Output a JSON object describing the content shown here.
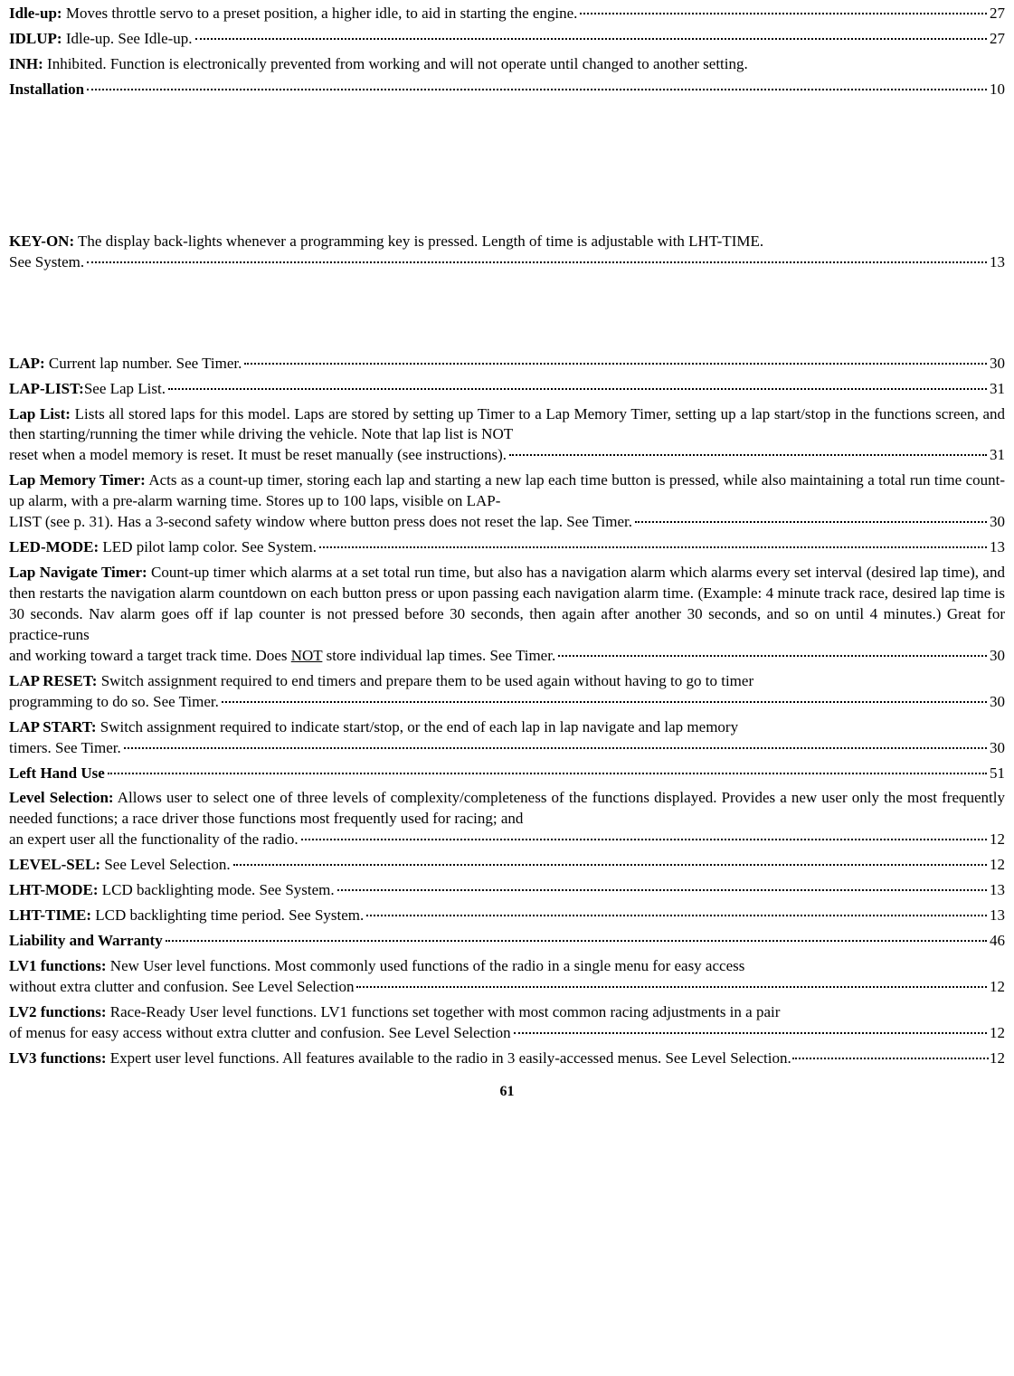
{
  "entries": [
    {
      "term": "Idle-up:",
      "desc": " Moves throttle servo to a preset position, a higher idle, to aid in starting the engine.",
      "page": "27",
      "type": "single"
    },
    {
      "term": "IDLUP:",
      "desc": " Idle-up. See Idle-up.",
      "page": "27",
      "type": "single"
    },
    {
      "term": "INH:",
      "desc": " Inhibited. Function is electronically prevented from working and will not operate until changed to another setting.",
      "type": "nopage"
    },
    {
      "term": "Installation",
      "desc": "",
      "page": "10",
      "type": "single"
    },
    {
      "type": "gap-large"
    },
    {
      "term": "KEY-ON:",
      "desc_lines": [
        " The display back-lights whenever a programming key is pressed. Length of time is adjustable with LHT-TIME."
      ],
      "last": "See System.",
      "page": "13",
      "type": "multi"
    },
    {
      "type": "gap-medium"
    },
    {
      "term": "LAP:",
      "desc": " Current lap number. See Timer. ",
      "page": "30",
      "type": "single"
    },
    {
      "term": "LAP-LIST:",
      "desc": "See Lap List.",
      "page": "31",
      "type": "single"
    },
    {
      "term": "Lap List:",
      "desc_lines": [
        " Lists all stored laps for this model. Laps are stored by setting up Timer to a Lap Memory Timer, setting up a lap start/stop in the functions screen, and then starting/running the timer while driving the vehicle. Note that lap list is NOT"
      ],
      "last": "reset when a model memory is reset. It must be reset manually (see instructions).",
      "page": "31",
      "type": "multi"
    },
    {
      "term": "Lap Memory Timer:",
      "desc_lines": [
        " Acts as a count-up timer, storing each lap and starting a new lap each time button is pressed, while also maintaining a total run time count-up alarm, with a pre-alarm warning time. Stores up to 100 laps, visible on LAP-"
      ],
      "last": "LIST (see p. 31). Has a 3-second safety window where button press does not reset the lap. See Timer. ",
      "page": "30",
      "type": "multi"
    },
    {
      "term": "LED-MODE:",
      "desc": " LED pilot lamp color. See System.",
      "page": "13",
      "type": "single"
    },
    {
      "term": "Lap Navigate Timer:",
      "desc_lines": [
        "  Count-up timer which alarms at a set total run time, but also has a navigation alarm which alarms every set interval (desired lap time), and then restarts the navigation alarm countdown on each button press or upon passing each navigation alarm time. (Example: 4 minute track race, desired lap time is 30 seconds. Nav alarm goes off if lap counter is not pressed before 30 seconds, then again after another 30 seconds, and so on until 4 minutes.) Great for practice-runs"
      ],
      "last_html": "and working toward a target track time. Does <span class=\"underline\">NOT</span> store individual lap times. See Timer.",
      "page": "30",
      "type": "multi-html"
    },
    {
      "term": "LAP RESET:",
      "desc_lines": [
        " Switch assignment required to end timers and prepare them to be used again without having to go to timer"
      ],
      "last": "programming to do so. See Timer. ",
      "page": "30",
      "type": "multi"
    },
    {
      "term": "LAP START:",
      "desc_lines": [
        " Switch assignment required to indicate start/stop, or the end of each lap in lap navigate and lap memory"
      ],
      "last": "timers. See Timer. ",
      "page": "30",
      "type": "multi"
    },
    {
      "term": "Left Hand Use ",
      "desc": "",
      "page": "51",
      "type": "single"
    },
    {
      "term": "Level Selection:",
      "desc_lines": [
        " Allows user to select one of three levels of complexity/completeness of the functions displayed. Provides a new user only the most frequently needed functions; a race driver those functions most frequently used for racing; and"
      ],
      "last": "an expert user all the functionality of the radio.",
      "page": "12",
      "type": "multi"
    },
    {
      "term": "LEVEL-SEL:",
      "desc": " See Level Selection.",
      "page": "12",
      "type": "single"
    },
    {
      "term": "LHT-MODE:",
      "desc": " LCD backlighting mode. See System. ",
      "page": "13",
      "type": "single"
    },
    {
      "term": "LHT-TIME:",
      "desc": " LCD backlighting time period. See System. ",
      "page": "13",
      "type": "single"
    },
    {
      "term": "Liability and Warranty ",
      "desc": "",
      "page": "46",
      "type": "single"
    },
    {
      "term": "LV1 functions:",
      "desc_lines": [
        " New User level functions. Most commonly used functions of the radio in a single menu for easy access"
      ],
      "last": "without extra clutter and confusion. See Level Selection ",
      "page": "12",
      "type": "multi"
    },
    {
      "term": "LV2 functions:",
      "desc_lines": [
        " Race-Ready User level functions. LV1 functions set together with most common racing adjustments in a pair"
      ],
      "last": "of menus for easy access without extra clutter and confusion. See Level Selection",
      "page": "12",
      "type": "multi"
    },
    {
      "term": "LV3 functions:",
      "desc": " Expert user level functions. All features available to the radio in 3 easily-accessed menus. See Level Selection.",
      "page": "12",
      "type": "single-tight"
    }
  ],
  "footer": "61"
}
